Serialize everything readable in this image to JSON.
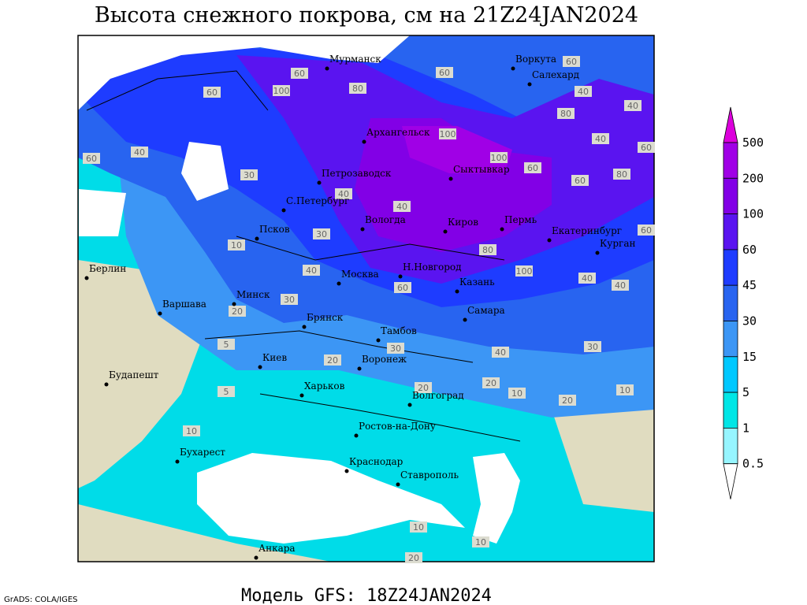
{
  "title": "Высота снежного покрова, см на 21Z24JAN2024",
  "footer": "Модель GFS: 18Z24JAN2024",
  "credit": "GrADS: COLA/IGES",
  "legend": {
    "levels": [
      500,
      200,
      100,
      60,
      45,
      30,
      15,
      5,
      1,
      0.5
    ],
    "colors": [
      "#dc00dc",
      "#a000e6",
      "#8200e6",
      "#5a14f0",
      "#1e3cff",
      "#2864f0",
      "#3c96f5",
      "#00c8ff",
      "#00e6e6",
      "#96f5ff",
      "#ffffff"
    ]
  },
  "cities": [
    "Мурманск",
    "Воркута",
    "Салехард",
    "Архангельск",
    "Петрозаводск",
    "Сыктывкар",
    "С.Петербург",
    "Вологда",
    "Киров",
    "Пермь",
    "Екатеринбург",
    "Курган",
    "Псков",
    "Берлин",
    "Н.Новгород",
    "Москва",
    "Казань",
    "Минск",
    "Варшава",
    "Брянск",
    "Самара",
    "Тамбов",
    "Киев",
    "Воронеж",
    "Будапешт",
    "Харьков",
    "Волгоград",
    "Ростов-на-Дону",
    "Бухарест",
    "Краснодар",
    "Ставрополь",
    "Анкара"
  ],
  "contour_labels": [
    60,
    100,
    80,
    60,
    40,
    60,
    30,
    40,
    40,
    30,
    10,
    40,
    30,
    20,
    5,
    5,
    10,
    30,
    20,
    20,
    20,
    10,
    20,
    10,
    40,
    30,
    40,
    40,
    60,
    100,
    80,
    60,
    60,
    80,
    60,
    100,
    100,
    60,
    40,
    60,
    80,
    40,
    60,
    40,
    10,
    10,
    20
  ]
}
